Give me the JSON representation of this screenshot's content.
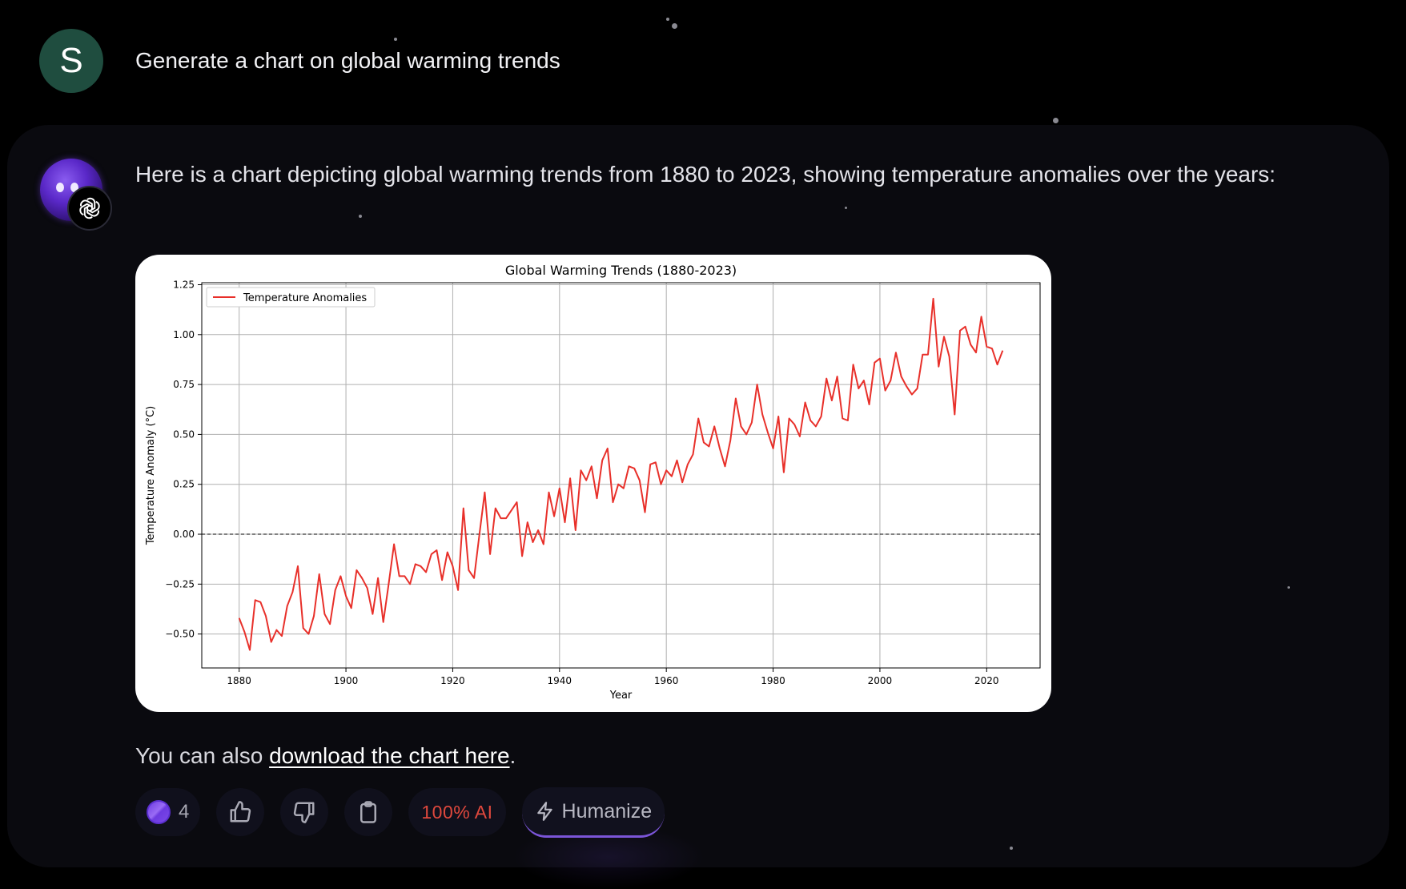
{
  "user": {
    "avatar_initial": "S",
    "avatar_color": "#1f4d3f",
    "message": "Generate a chart on global warming trends"
  },
  "assistant": {
    "avatar_icon": "purple-orb-avatar",
    "model_badge_icon": "openai-logo-icon",
    "intro_text": "Here is a chart depicting global warming trends from 1880 to 2023, showing temperature anomalies over the years:",
    "download_prefix": "You can also ",
    "download_link": "download the chart here",
    "download_suffix": "."
  },
  "actions": {
    "credits_icon": "coin-icon",
    "credits_count": "4",
    "like_icon": "thumbs-up-icon",
    "dislike_icon": "thumbs-down-icon",
    "copy_icon": "clipboard-icon",
    "ai_score": "100%  AI",
    "ai_score_color": "#e0483d",
    "humanize_icon": "lightning-icon",
    "humanize_label": "Humanize"
  },
  "chart_data": {
    "type": "line",
    "title": "Global Warming Trends (1880-2023)",
    "xlabel": "Year",
    "ylabel": "Temperature Anomaly (°C)",
    "xlim": [
      1873,
      2030
    ],
    "ylim": [
      -0.67,
      1.26
    ],
    "xticks": [
      1880,
      1900,
      1920,
      1940,
      1960,
      1980,
      2000,
      2020
    ],
    "yticks": [
      -0.5,
      -0.25,
      0.0,
      0.25,
      0.5,
      0.75,
      1.0,
      1.25
    ],
    "ytick_labels": [
      "−0.50",
      "−0.25",
      "0.00",
      "0.25",
      "0.50",
      "0.75",
      "1.00",
      "1.25"
    ],
    "grid": true,
    "reference_line": {
      "y": 0.0,
      "style": "dashed",
      "color": "#000000"
    },
    "legend": {
      "position": "top-left",
      "entries": [
        "Temperature Anomalies"
      ]
    },
    "series": [
      {
        "name": "Temperature Anomalies",
        "color": "#e8302a",
        "x_start": 1880,
        "x_end": 2023,
        "values": [
          -0.42,
          -0.49,
          -0.58,
          -0.33,
          -0.34,
          -0.41,
          -0.54,
          -0.48,
          -0.51,
          -0.36,
          -0.29,
          -0.16,
          -0.47,
          -0.5,
          -0.41,
          -0.2,
          -0.4,
          -0.45,
          -0.28,
          -0.21,
          -0.31,
          -0.37,
          -0.18,
          -0.22,
          -0.27,
          -0.4,
          -0.22,
          -0.44,
          -0.25,
          -0.05,
          -0.21,
          -0.21,
          -0.25,
          -0.15,
          -0.16,
          -0.19,
          -0.1,
          -0.08,
          -0.23,
          -0.09,
          -0.16,
          -0.28,
          0.13,
          -0.18,
          -0.22,
          0.0,
          0.21,
          -0.1,
          0.13,
          0.08,
          0.08,
          0.12,
          0.16,
          -0.11,
          0.06,
          -0.04,
          0.02,
          -0.05,
          0.21,
          0.09,
          0.23,
          0.06,
          0.28,
          0.02,
          0.32,
          0.27,
          0.34,
          0.18,
          0.37,
          0.43,
          0.16,
          0.25,
          0.23,
          0.34,
          0.33,
          0.27,
          0.11,
          0.35,
          0.36,
          0.25,
          0.32,
          0.29,
          0.37,
          0.26,
          0.35,
          0.4,
          0.58,
          0.46,
          0.44,
          0.54,
          0.43,
          0.34,
          0.47,
          0.68,
          0.54,
          0.5,
          0.56,
          0.75,
          0.6,
          0.51,
          0.43,
          0.59,
          0.31,
          0.58,
          0.55,
          0.49,
          0.66,
          0.57,
          0.54,
          0.59,
          0.78,
          0.67,
          0.79,
          0.58,
          0.57,
          0.85,
          0.73,
          0.77,
          0.65,
          0.86,
          0.88,
          0.72,
          0.77,
          0.91,
          0.79,
          0.74,
          0.7,
          0.73,
          0.9,
          0.9,
          1.18,
          0.84,
          0.99,
          0.89,
          0.6,
          1.02,
          1.04,
          0.95,
          0.91,
          1.09,
          0.94,
          0.93,
          0.85,
          0.92
        ]
      }
    ]
  }
}
